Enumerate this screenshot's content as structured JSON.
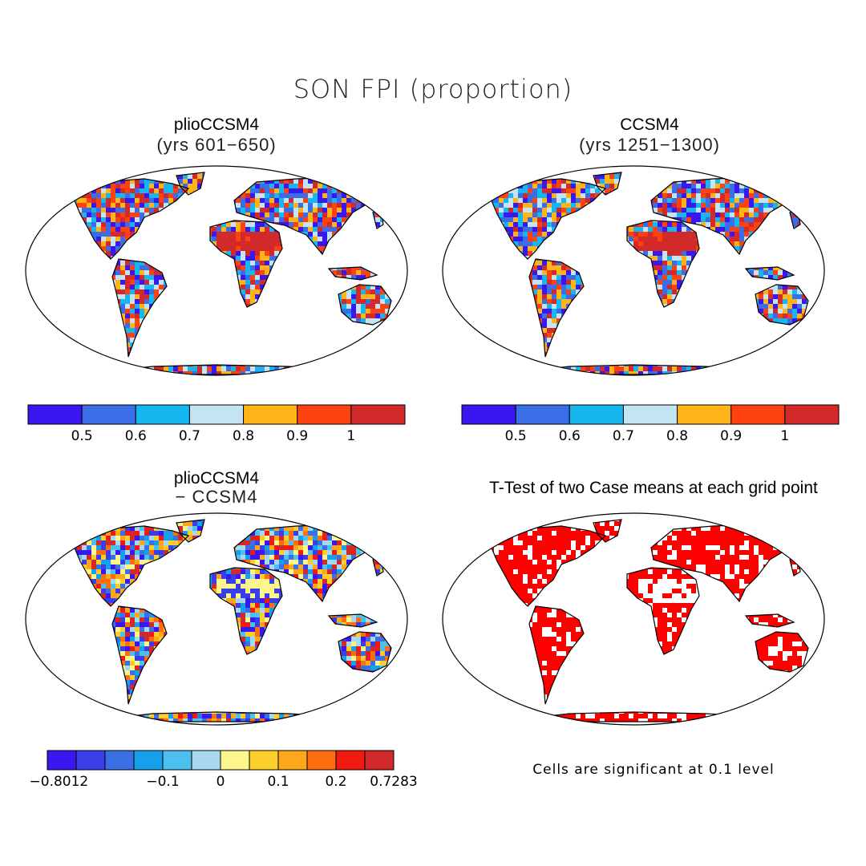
{
  "title": "SON FPI (proportion)",
  "panels": [
    {
      "id": "plio",
      "title": "plioCCSM4",
      "subtitle": "(yrs 601−650)"
    },
    {
      "id": "ccsm",
      "title": "CCSM4",
      "subtitle": "(yrs 1251−1300)"
    },
    {
      "id": "diff",
      "title": "plioCCSM4",
      "subtitle": "− CCSM4"
    },
    {
      "id": "ttest",
      "title": "T-Test of two Case means at each grid point",
      "subtitle": ""
    }
  ],
  "colorbars": {
    "fpi": {
      "colors": [
        "#3a16f0",
        "#3a6ee8",
        "#16b6f0",
        "#c4e4f4",
        "#fdb416",
        "#fd4210",
        "#d22a2a"
      ],
      "ticks": [
        "0.5",
        "0.6",
        "0.7",
        "0.8",
        "0.9",
        "1"
      ]
    },
    "diff": {
      "colors": [
        "#3a16f0",
        "#3a3ee8",
        "#3a70e4",
        "#16a0ec",
        "#4ec0f0",
        "#a8d8f0",
        "#fdf68c",
        "#fdce2a",
        "#fda81a",
        "#fd6e10",
        "#f01a10",
        "#d22a2a"
      ],
      "ticks": [
        "−0.8012",
        "−0.1",
        "0",
        "0.1",
        "0.2",
        "0.7283"
      ]
    }
  },
  "note": "Cells are significant at 0.1 level"
}
